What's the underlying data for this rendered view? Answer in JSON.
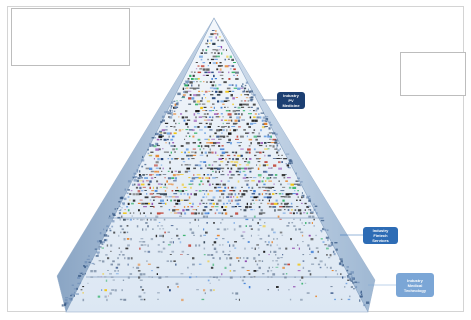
{
  "labels": [
    {
      "industry": "Industry",
      "name": "PV Medicine",
      "color": "#1c3f72"
    },
    {
      "industry": "Industry",
      "name": "Fintech Services",
      "color": "#2d6cb5"
    },
    {
      "industry": "Industry",
      "name": "Medical Technology",
      "color": "#7ba6d6"
    }
  ],
  "colors": {
    "pyramid_left": "#9bb4cf",
    "pyramid_right": "#b4c8df",
    "pyramid_front": "#e6eef7",
    "band_line": "#5c7ea8",
    "frame": "#d4d4d4"
  }
}
